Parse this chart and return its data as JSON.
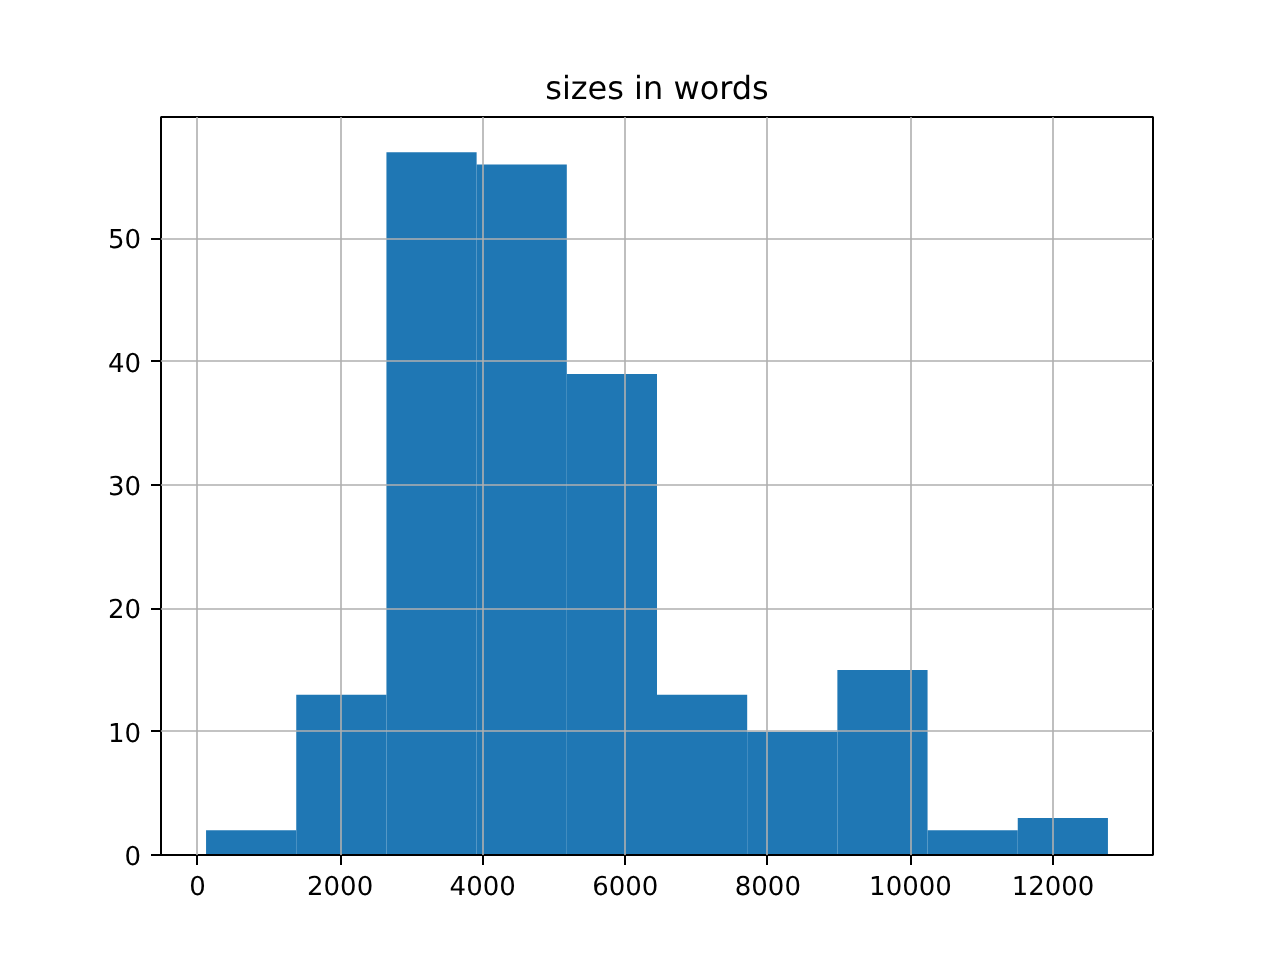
{
  "chart_data": {
    "type": "histogram",
    "title": "sizes in words",
    "bins": [
      120,
      1385,
      2650,
      3915,
      5180,
      6445,
      7710,
      8975,
      10240,
      11505,
      12770
    ],
    "values": [
      2,
      13,
      57,
      56,
      39,
      13,
      10,
      15,
      2,
      3
    ],
    "color": "#1f77b4",
    "xlim": [
      -512,
      13402
    ],
    "ylim": [
      0,
      59.85
    ],
    "xticks": [
      0,
      2000,
      4000,
      6000,
      8000,
      10000,
      12000
    ],
    "yticks": [
      0,
      10,
      20,
      30,
      40,
      50
    ],
    "grid": true
  }
}
